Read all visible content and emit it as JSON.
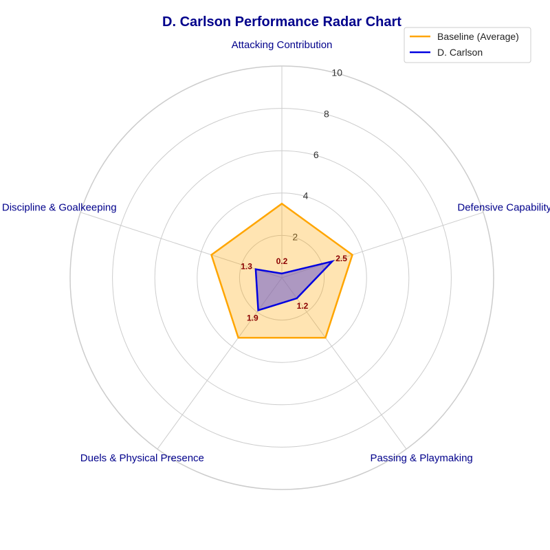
{
  "chart_data": {
    "type": "radar",
    "title": "D. Carlson Performance Radar Chart",
    "categories": [
      "Attacking Contribution",
      "Defensive Capability",
      "Passing & Playmaking",
      "Duels & Physical Presence",
      "Discipline & Goalkeeping"
    ],
    "rlim": [
      0,
      10
    ],
    "rticks": [
      2,
      4,
      6,
      8,
      10
    ],
    "grid": true,
    "legend_position": "top-right",
    "series": [
      {
        "name": "Baseline (Average)",
        "values": [
          3.5,
          3.5,
          3.5,
          3.5,
          3.5
        ],
        "color": "#ffa500",
        "fill": "#ffa500"
      },
      {
        "name": "D. Carlson",
        "values": [
          0.2,
          2.5,
          1.2,
          1.9,
          1.3
        ],
        "color": "#0000e0",
        "fill": "#6a5acd",
        "show_labels": true
      }
    ]
  }
}
